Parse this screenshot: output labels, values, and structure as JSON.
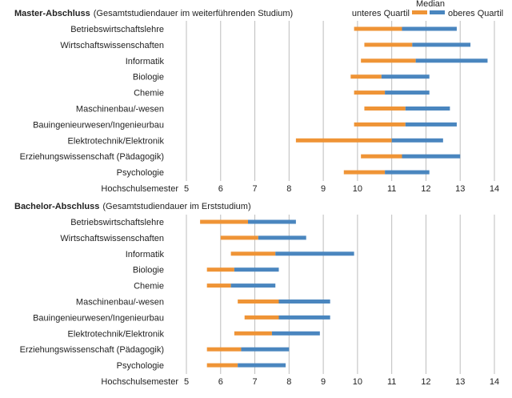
{
  "legend": {
    "median_label": "Median",
    "lower_label": "unteres Quartil",
    "upper_label": "oberes Quartil",
    "lower_color": "#ef9436",
    "upper_color": "#4a86bf"
  },
  "chart_data": [
    {
      "type": "bar",
      "title": "Master-Abschluss",
      "subtitle": "(Gesamtstudiendauer im weiterführenden Studium)",
      "xlabel": "Hochschulsemester",
      "xlim": [
        5,
        14
      ],
      "xticks": [
        5,
        6,
        7,
        8,
        9,
        10,
        11,
        12,
        13,
        14
      ],
      "grid": true,
      "categories": [
        "Betriebswirtschaftslehre",
        "Wirtschaftswissenschaften",
        "Informatik",
        "Biologie",
        "Chemie",
        "Maschinenbau/-wesen",
        "Bauingenieurwesen/Ingenieurbau",
        "Elektrotechnik/Elektronik",
        "Erziehungswissenschaft (Pädagogik)",
        "Psychologie"
      ],
      "series": [
        {
          "name": "unteres Quartil",
          "values": [
            9.9,
            10.2,
            10.1,
            9.8,
            9.9,
            10.2,
            9.9,
            8.2,
            10.1,
            9.6
          ]
        },
        {
          "name": "Median",
          "values": [
            11.3,
            11.6,
            11.7,
            10.7,
            10.8,
            11.4,
            11.4,
            11.0,
            11.3,
            10.8
          ]
        },
        {
          "name": "oberes Quartil",
          "values": [
            12.9,
            13.3,
            13.8,
            12.1,
            12.1,
            12.7,
            12.9,
            12.5,
            13.0,
            12.1
          ]
        }
      ]
    },
    {
      "type": "bar",
      "title": "Bachelor-Abschluss",
      "subtitle": "(Gesamtstudiendauer im Erststudium)",
      "xlabel": "Hochschulsemester",
      "xlim": [
        5,
        14
      ],
      "xticks": [
        5,
        6,
        7,
        8,
        9,
        10,
        11,
        12,
        13,
        14
      ],
      "grid": true,
      "categories": [
        "Betriebswirtschaftslehre",
        "Wirtschaftswissenschaften",
        "Informatik",
        "Biologie",
        "Chemie",
        "Maschinenbau/-wesen",
        "Bauingenieurwesen/Ingenieurbau",
        "Elektrotechnik/Elektronik",
        "Erziehungswissenschaft (Pädagogik)",
        "Psychologie"
      ],
      "series": [
        {
          "name": "unteres Quartil",
          "values": [
            5.4,
            6.0,
            6.3,
            5.6,
            5.6,
            6.5,
            6.7,
            6.4,
            5.6,
            5.6
          ]
        },
        {
          "name": "Median",
          "values": [
            6.8,
            7.1,
            7.6,
            6.4,
            6.3,
            7.7,
            7.7,
            7.5,
            6.6,
            6.5
          ]
        },
        {
          "name": "oberes Quartil",
          "values": [
            8.2,
            8.5,
            9.9,
            7.7,
            7.6,
            9.2,
            9.2,
            8.9,
            8.0,
            7.9
          ]
        }
      ]
    }
  ]
}
